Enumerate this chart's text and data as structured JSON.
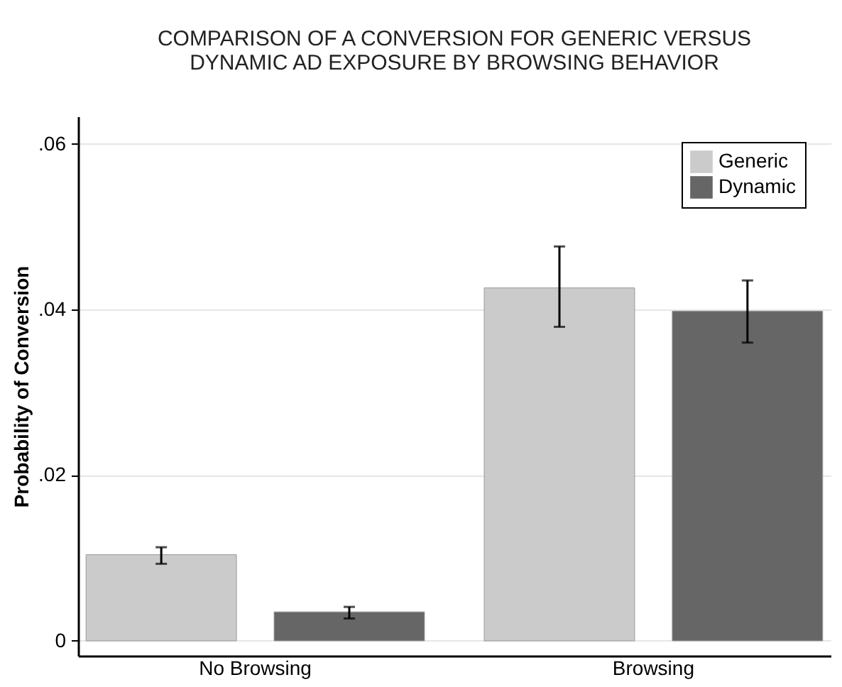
{
  "chart_data": {
    "type": "bar",
    "title": [
      "COMPARISON OF A CONVERSION FOR GENERIC VERSUS",
      "DYNAMIC AD EXPOSURE BY BROWSING BEHAVIOR"
    ],
    "ylabel": "Probability of Conversion",
    "categories": [
      "No Browsing",
      "Browsing"
    ],
    "series": [
      {
        "name": "Generic",
        "color": "#cbcbcb",
        "values": [
          0.0104,
          0.0426
        ],
        "errors": [
          [
            0.0093,
            0.0113
          ],
          [
            0.0379,
            0.0476
          ]
        ]
      },
      {
        "name": "Dynamic",
        "color": "#666666",
        "values": [
          0.0035,
          0.0398
        ],
        "errors": [
          [
            0.0027,
            0.0041
          ],
          [
            0.036,
            0.0435
          ]
        ]
      }
    ],
    "ylim": [
      -0.0018,
      0.0633
    ],
    "yticks": [
      {
        "value": 0,
        "label": "0"
      },
      {
        "value": 0.02,
        "label": ".02"
      },
      {
        "value": 0.04,
        "label": ".04"
      },
      {
        "value": 0.06,
        "label": ".06"
      }
    ],
    "grid": "y",
    "legend": "top right"
  }
}
